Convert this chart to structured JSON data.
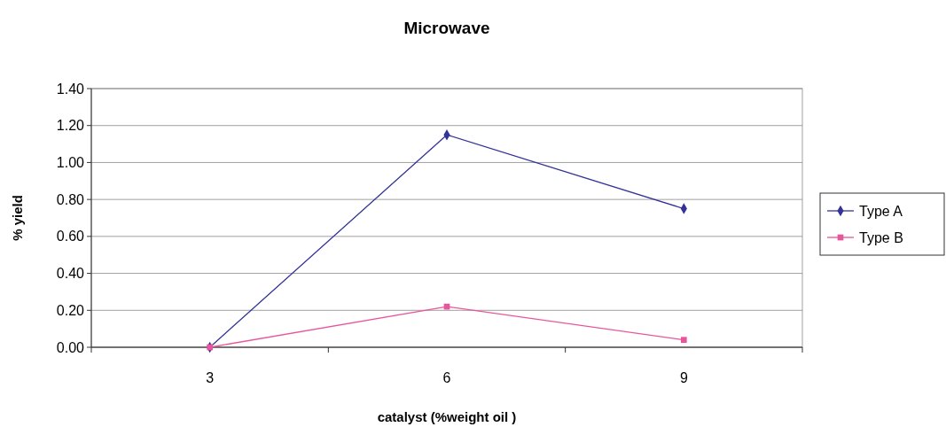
{
  "chart_data": {
    "type": "line",
    "title": "Microwave",
    "xlabel": "catalyst (%weight oil )",
    "ylabel": "% yield",
    "categories": [
      "3",
      "6",
      "9"
    ],
    "series": [
      {
        "name": "Type A",
        "color": "#333399",
        "marker": "diamond",
        "values": [
          0,
          1.15,
          0.75
        ]
      },
      {
        "name": "Type B",
        "color": "#e8559a",
        "marker": "square",
        "values": [
          0,
          0.22,
          0.04
        ]
      }
    ],
    "ylim": [
      0,
      1.4
    ],
    "yticks": [
      {
        "value": 0,
        "label": "0.00"
      },
      {
        "value": 0.2,
        "label": "0.20"
      },
      {
        "value": 0.4,
        "label": "0.40"
      },
      {
        "value": 0.6,
        "label": "0.60"
      },
      {
        "value": 0.8,
        "label": "0.80"
      },
      {
        "value": 1,
        "label": "1.00"
      },
      {
        "value": 1.2,
        "label": "1.20"
      },
      {
        "value": 1.4,
        "label": "1.40"
      }
    ],
    "grid": "y",
    "legend": "right"
  }
}
